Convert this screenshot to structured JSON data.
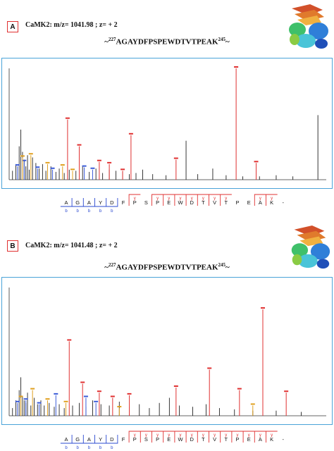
{
  "panels": [
    {
      "tag": "A",
      "title": "CaMK2: m/z= 1041.98 ;  z= + 2",
      "peptide": {
        "pre": "~",
        "start": "227",
        "seq": "AGAYDFPSPEWDTVTPEAK",
        "end": "245",
        "post": "~"
      },
      "sequence": {
        "residues": [
          "A",
          "G",
          "A",
          "Y",
          "D",
          "F",
          "P",
          "S",
          "P",
          "E",
          "W",
          "D",
          "T",
          "V",
          "T",
          "P",
          "E",
          "A",
          "K",
          "-"
        ],
        "b_after": [
          1,
          2,
          3,
          4,
          5
        ],
        "y_before": [
          6,
          8,
          9,
          10,
          11,
          12,
          13,
          14,
          17,
          18
        ],
        "b_label": "b",
        "y_label": "y"
      },
      "chart_data": {
        "type": "bar",
        "xlim": [
          100,
          2000
        ],
        "ylim": [
          0,
          100
        ],
        "series": [
          {
            "color": "#222222",
            "points": [
              [
                120,
                8
              ],
              [
                140,
                14
              ],
              [
                160,
                30
              ],
              [
                170,
                45
              ],
              [
                180,
                25
              ],
              [
                190,
                18
              ],
              [
                200,
                12
              ],
              [
                210,
                22
              ],
              [
                220,
                9
              ],
              [
                240,
                20
              ],
              [
                260,
                15
              ],
              [
                280,
                10
              ],
              [
                300,
                14
              ],
              [
                320,
                8
              ],
              [
                350,
                12
              ],
              [
                380,
                7
              ],
              [
                400,
                10
              ],
              [
                430,
                6
              ],
              [
                460,
                9
              ],
              [
                500,
                8
              ],
              [
                540,
                12
              ],
              [
                580,
                7
              ],
              [
                620,
                10
              ],
              [
                660,
                6
              ],
              [
                700,
                9
              ],
              [
                740,
                8
              ],
              [
                780,
                7
              ],
              [
                820,
                5
              ],
              [
                860,
                6
              ],
              [
                900,
                9
              ],
              [
                960,
                5
              ],
              [
                1040,
                4
              ],
              [
                1160,
                35
              ],
              [
                1230,
                5
              ],
              [
                1320,
                10
              ],
              [
                1400,
                4
              ],
              [
                1500,
                3
              ],
              [
                1600,
                3
              ],
              [
                1700,
                4
              ],
              [
                1800,
                3
              ],
              [
                1950,
                58
              ]
            ]
          },
          {
            "color": "#e03030",
            "points": [
              [
                450,
                54
              ],
              [
                520,
                30
              ],
              [
                640,
                16
              ],
              [
                700,
                14
              ],
              [
                780,
                8
              ],
              [
                830,
                40
              ],
              [
                1100,
                18
              ],
              [
                1460,
                100
              ],
              [
                1580,
                15
              ]
            ]
          },
          {
            "color": "#3a5bd8",
            "points": [
              [
                150,
                12
              ],
              [
                190,
                16
              ],
              [
                270,
                10
              ],
              [
                360,
                9
              ],
              [
                550,
                11
              ],
              [
                600,
                9
              ]
            ]
          },
          {
            "color": "#e0a020",
            "points": [
              [
                180,
                20
              ],
              [
                230,
                22
              ],
              [
                330,
                14
              ],
              [
                420,
                12
              ],
              [
                480,
                8
              ]
            ]
          }
        ]
      }
    },
    {
      "tag": "B",
      "title": "CaMK2: m/z= 1041.48 ;  z= + 2",
      "peptide": {
        "pre": "~",
        "start": "227",
        "seq": "AGAYDFPSPEWDTVTPEAK",
        "end": "245",
        "post": "~"
      },
      "sequence": {
        "residues": [
          "A",
          "G",
          "A",
          "Y",
          "D",
          "F",
          "P",
          "S",
          "P",
          "E",
          "W",
          "D",
          "T",
          "V",
          "T",
          "P",
          "E",
          "A",
          "K",
          "-"
        ],
        "b_after": [
          1,
          2,
          3,
          4,
          5
        ],
        "y_before": [
          6,
          7,
          8,
          9,
          10,
          11,
          12,
          13,
          14,
          15,
          16,
          17,
          18
        ],
        "b_label": "b",
        "y_label": "y"
      },
      "chart_data": {
        "type": "bar",
        "xlim": [
          100,
          2000
        ],
        "ylim": [
          0,
          100
        ],
        "series": [
          {
            "color": "#222222",
            "points": [
              [
                120,
                6
              ],
              [
                140,
                12
              ],
              [
                160,
                20
              ],
              [
                170,
                30
              ],
              [
                180,
                15
              ],
              [
                190,
                12
              ],
              [
                200,
                10
              ],
              [
                210,
                18
              ],
              [
                230,
                8
              ],
              [
                250,
                14
              ],
              [
                270,
                9
              ],
              [
                290,
                12
              ],
              [
                310,
                8
              ],
              [
                340,
                10
              ],
              [
                370,
                7
              ],
              [
                400,
                9
              ],
              [
                430,
                6
              ],
              [
                480,
                8
              ],
              [
                520,
                10
              ],
              [
                560,
                7
              ],
              [
                600,
                12
              ],
              [
                650,
                9
              ],
              [
                700,
                8
              ],
              [
                760,
                11
              ],
              [
                820,
                7
              ],
              [
                880,
                9
              ],
              [
                940,
                6
              ],
              [
                1000,
                10
              ],
              [
                1060,
                14
              ],
              [
                1120,
                8
              ],
              [
                1200,
                7
              ],
              [
                1280,
                9
              ],
              [
                1360,
                6
              ],
              [
                1450,
                5
              ],
              [
                1560,
                4
              ],
              [
                1700,
                4
              ],
              [
                1850,
                3
              ]
            ]
          },
          {
            "color": "#e03030",
            "points": [
              [
                460,
                58
              ],
              [
                540,
                25
              ],
              [
                640,
                18
              ],
              [
                720,
                14
              ],
              [
                820,
                16
              ],
              [
                1100,
                22
              ],
              [
                1300,
                36
              ],
              [
                1480,
                20
              ],
              [
                1620,
                83
              ],
              [
                1760,
                18
              ]
            ]
          },
          {
            "color": "#3a5bd8",
            "points": [
              [
                150,
                10
              ],
              [
                200,
                12
              ],
              [
                280,
                9
              ],
              [
                380,
                16
              ],
              [
                560,
                14
              ],
              [
                620,
                10
              ]
            ]
          },
          {
            "color": "#e0a020",
            "points": [
              [
                170,
                14
              ],
              [
                240,
                20
              ],
              [
                330,
                12
              ],
              [
                440,
                10
              ],
              [
                760,
                6
              ],
              [
                1560,
                8
              ]
            ]
          }
        ]
      }
    }
  ]
}
